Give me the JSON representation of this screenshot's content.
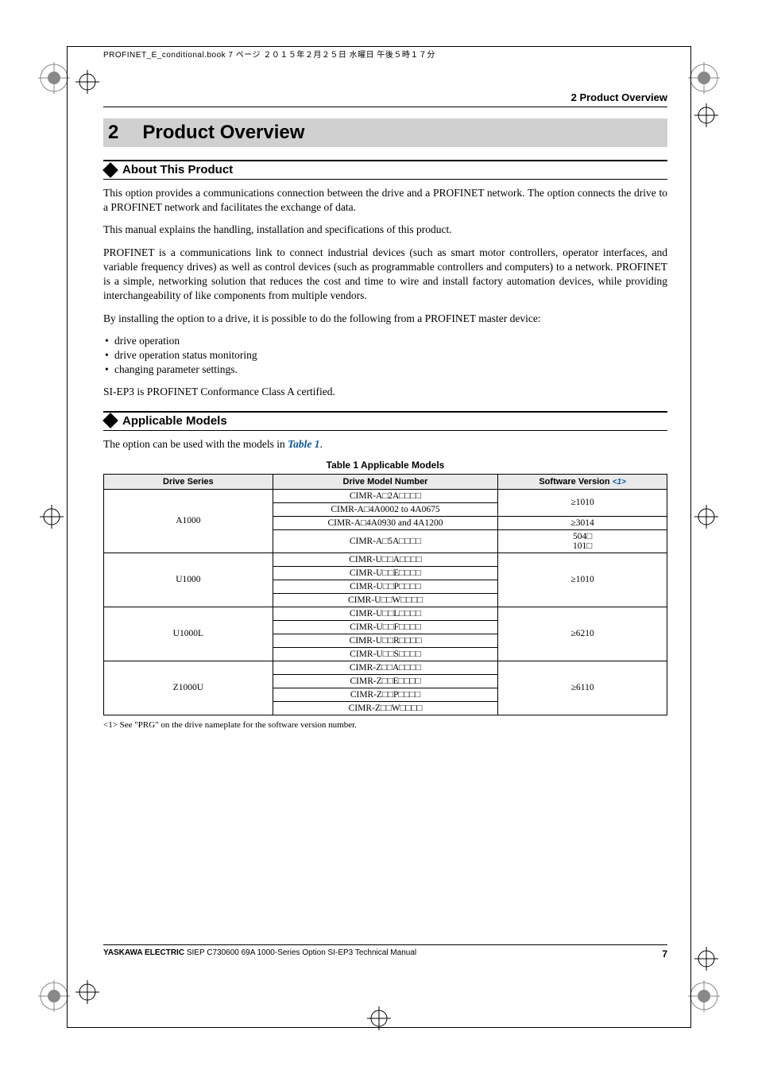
{
  "colors": {
    "link": "#0b5699",
    "thead_bg": "#eaeaea",
    "chapter_bg": "#d0d0d0"
  },
  "header_meta": "PROFINET_E_conditional.book  7 ページ   ２０１５年２月２５日   水曜日   午後５時１７分",
  "running_header": "2  Product Overview",
  "chapter": {
    "num": "2",
    "title": "Product Overview"
  },
  "about": {
    "title": "About This Product",
    "p1": "This option provides a communications connection between the drive and a PROFINET network. The option connects the drive to a PROFINET network and facilitates the exchange of data.",
    "p2": "This manual explains the handling, installation and specifications of this product.",
    "p3": "PROFINET is a communications link to connect industrial devices (such as smart motor controllers, operator interfaces, and variable frequency drives) as well as control devices (such as programmable controllers and computers) to a network. PROFINET is a simple, networking solution that reduces the cost and time to wire and install factory automation devices, while providing interchangeability of like components from multiple vendors.",
    "p4": "By installing the option to a drive, it is possible to do the following from a PROFINET master device:",
    "bullets": [
      "drive operation",
      "drive operation status monitoring",
      "changing parameter settings."
    ],
    "p5": "SI-EP3 is PROFINET Conformance Class A certified."
  },
  "applicable": {
    "title": "Applicable Models",
    "intro_pre": "The option can be used with the models in ",
    "intro_link": "Table 1",
    "intro_post": ".",
    "table_caption": "Table 1  Applicable Models",
    "columns": [
      "Drive Series",
      "Drive Model Number",
      "Software Version"
    ],
    "sv_ref": "<1>",
    "series": [
      {
        "name": "A1000",
        "rows": [
          {
            "model": "CIMR-A□2A□□□□",
            "sv": "≥1010",
            "sv_span": 2
          },
          {
            "model": "CIMR-A□4A0002 to 4A0675"
          },
          {
            "model": "CIMR-A□4A0930 and 4A1200",
            "sv": "≥3014",
            "sv_span": 1
          },
          {
            "model": "CIMR-A□5A□□□□",
            "sv": "504□\n101□",
            "sv_span": 1
          }
        ]
      },
      {
        "name": "U1000",
        "rows": [
          {
            "model": "CIMR-U□□A□□□□",
            "sv": "≥1010",
            "sv_span": 4
          },
          {
            "model": "CIMR-U□□E□□□□"
          },
          {
            "model": "CIMR-U□□P□□□□"
          },
          {
            "model": "CIMR-U□□W□□□□"
          }
        ]
      },
      {
        "name": "U1000L",
        "rows": [
          {
            "model": "CIMR-U□□L□□□□",
            "sv": "≥6210",
            "sv_span": 4
          },
          {
            "model": "CIMR-U□□F□□□□"
          },
          {
            "model": "CIMR-U□□R□□□□"
          },
          {
            "model": "CIMR-U□□S□□□□"
          }
        ]
      },
      {
        "name": "Z1000U",
        "rows": [
          {
            "model": "CIMR-Z□□A□□□□",
            "sv": "≥6110",
            "sv_span": 4
          },
          {
            "model": "CIMR-Z□□E□□□□"
          },
          {
            "model": "CIMR-Z□□P□□□□"
          },
          {
            "model": "CIMR-Z□□W□□□□"
          }
        ]
      }
    ],
    "footnote": "<1> See \"PRG\" on the drive nameplate for the software version number."
  },
  "footer": {
    "left_bold": "YASKAWA ELECTRIC",
    "left_rest": " SIEP C730600 69A 1000-Series Option SI-EP3 Technical Manual",
    "page": "7"
  }
}
